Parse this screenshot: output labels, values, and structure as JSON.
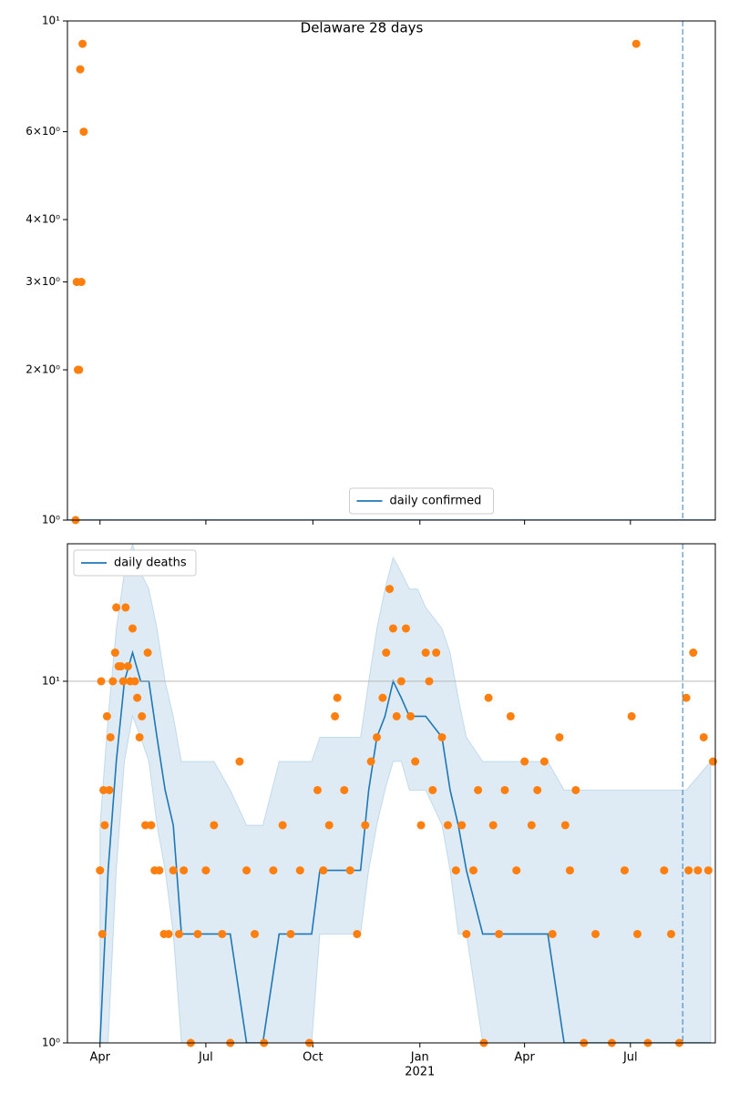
{
  "chart_data": [
    {
      "type": "line",
      "title": "Delaware 28 days",
      "yscale": "log",
      "xlim": [
        "2020-03-04",
        "2021-09-12"
      ],
      "ylim": [
        1,
        10
      ],
      "yticks": [
        {
          "value": 1,
          "label": "10⁰"
        },
        {
          "value": 2,
          "label": "2×10⁰"
        },
        {
          "value": 3,
          "label": "3×10⁰"
        },
        {
          "value": 4,
          "label": "4×10⁰"
        },
        {
          "value": 6,
          "label": "6×10⁰"
        },
        {
          "value": 10,
          "label": "10¹"
        }
      ],
      "grid": false,
      "legend": "lower center",
      "vlines": [
        "2021-08-15"
      ],
      "series": [
        {
          "name": "daily confirmed",
          "type": "line",
          "color": "#1f77b4",
          "x": [
            "2020-03-04",
            "2021-09-12"
          ],
          "values": [
            1,
            1
          ]
        },
        {
          "type": "scatter",
          "color": "#ff7f0e",
          "x": [
            "2020-03-11",
            "2020-03-12",
            "2020-03-13",
            "2020-03-14",
            "2020-03-15",
            "2020-03-16",
            "2020-03-17",
            "2020-03-18",
            "2021-07-06"
          ],
          "values": [
            1,
            3,
            2,
            2,
            8,
            3,
            9,
            6,
            9
          ]
        }
      ]
    },
    {
      "type": "line",
      "yscale": "log",
      "xlim": [
        "2020-03-04",
        "2021-09-12"
      ],
      "ylim": [
        1,
        24
      ],
      "xticks": [
        {
          "value": "2020-04-01",
          "label": "Apr"
        },
        {
          "value": "2020-07-01",
          "label": "Jul"
        },
        {
          "value": "2020-10-01",
          "label": "Oct"
        },
        {
          "value": "2021-01-01",
          "label": "Jan",
          "label2": "2021"
        },
        {
          "value": "2021-04-01",
          "label": "Apr"
        },
        {
          "value": "2021-07-01",
          "label": "Jul"
        }
      ],
      "yticks": [
        {
          "value": 1,
          "label": "10⁰"
        },
        {
          "value": 10,
          "label": "10¹"
        }
      ],
      "grid": true,
      "legend": "upper left",
      "vlines": [
        "2021-08-15"
      ],
      "bands": [
        {
          "color": "#1f77b4",
          "x": [
            "2020-03-25",
            "2020-04-01",
            "2020-04-08",
            "2020-04-15",
            "2020-04-22",
            "2020-04-29",
            "2020-05-06",
            "2020-05-13",
            "2020-05-20",
            "2020-05-27",
            "2020-06-03",
            "2020-06-10",
            "2020-06-24",
            "2020-07-08",
            "2020-07-22",
            "2020-08-05",
            "2020-08-19",
            "2020-09-02",
            "2020-09-16",
            "2020-09-30",
            "2020-10-07",
            "2020-10-21",
            "2020-11-04",
            "2020-11-11",
            "2020-11-18",
            "2020-11-25",
            "2020-12-02",
            "2020-12-09",
            "2020-12-16",
            "2020-12-23",
            "2020-12-30",
            "2021-01-06",
            "2021-01-20",
            "2021-01-27",
            "2021-02-03",
            "2021-02-10",
            "2021-02-24",
            "2021-03-10",
            "2021-03-24",
            "2021-04-07",
            "2021-04-21",
            "2021-05-05",
            "2021-05-19",
            "2021-07-07",
            "2021-08-18",
            "2021-09-08"
          ],
          "lower": [
            null,
            1,
            1,
            3,
            6,
            8,
            7,
            6,
            4,
            3,
            2,
            1,
            1,
            1,
            1,
            1,
            1,
            1,
            1,
            1,
            2,
            2,
            2,
            2,
            3,
            4,
            5,
            6,
            6,
            5,
            5,
            5,
            4,
            3,
            2,
            2,
            1,
            1,
            1,
            1,
            1,
            1,
            1,
            1,
            1,
            1
          ],
          "upper": [
            null,
            4,
            8,
            14,
            20,
            24,
            20,
            18,
            14,
            10,
            8,
            6,
            6,
            6,
            5,
            4,
            4,
            6,
            6,
            6,
            7,
            7,
            7,
            7,
            10,
            14,
            18,
            22,
            20,
            18,
            18,
            16,
            14,
            12,
            9,
            7,
            6,
            6,
            6,
            6,
            6,
            5,
            5,
            5,
            5,
            6
          ]
        }
      ],
      "series": [
        {
          "name": "daily deaths",
          "type": "line",
          "color": "#1f77b4",
          "x": [
            "2020-03-25",
            "2020-04-01",
            "2020-04-08",
            "2020-04-15",
            "2020-04-22",
            "2020-04-29",
            "2020-05-06",
            "2020-05-13",
            "2020-05-20",
            "2020-05-27",
            "2020-06-03",
            "2020-06-10",
            "2020-06-24",
            "2020-07-08",
            "2020-07-22",
            "2020-08-05",
            "2020-08-19",
            "2020-09-02",
            "2020-09-16",
            "2020-09-30",
            "2020-10-07",
            "2020-10-21",
            "2020-11-04",
            "2020-11-11",
            "2020-11-18",
            "2020-11-25",
            "2020-12-02",
            "2020-12-09",
            "2020-12-16",
            "2020-12-23",
            "2020-12-30",
            "2021-01-06",
            "2021-01-20",
            "2021-01-27",
            "2021-02-03",
            "2021-02-10",
            "2021-02-24",
            "2021-03-10",
            "2021-03-24",
            "2021-04-07",
            "2021-04-21",
            "2021-05-05",
            "2021-05-19",
            "2021-07-07",
            "2021-08-18",
            "2021-09-08"
          ],
          "values": [
            null,
            1,
            3,
            6,
            10,
            12,
            10,
            10,
            7,
            5,
            4,
            2,
            2,
            2,
            2,
            1,
            1,
            2,
            2,
            2,
            3,
            3,
            3,
            3,
            5,
            7,
            8,
            10,
            9,
            8,
            8,
            8,
            7,
            5,
            4,
            3,
            2,
            2,
            2,
            2,
            2,
            1,
            1,
            1,
            1,
            1
          ]
        },
        {
          "type": "scatter",
          "color": "#ff7f0e",
          "x": [
            "2020-04-01",
            "2020-04-02",
            "2020-04-03",
            "2020-04-04",
            "2020-04-05",
            "2020-04-07",
            "2020-04-09",
            "2020-04-10",
            "2020-04-12",
            "2020-04-14",
            "2020-04-15",
            "2020-04-17",
            "2020-04-19",
            "2020-04-21",
            "2020-04-23",
            "2020-04-25",
            "2020-04-27",
            "2020-04-29",
            "2020-05-01",
            "2020-05-03",
            "2020-05-05",
            "2020-05-07",
            "2020-05-10",
            "2020-05-12",
            "2020-05-15",
            "2020-05-18",
            "2020-05-22",
            "2020-05-26",
            "2020-05-30",
            "2020-06-03",
            "2020-06-08",
            "2020-06-12",
            "2020-06-18",
            "2020-06-24",
            "2020-07-01",
            "2020-07-08",
            "2020-07-15",
            "2020-07-22",
            "2020-07-30",
            "2020-08-05",
            "2020-08-12",
            "2020-08-20",
            "2020-08-28",
            "2020-09-05",
            "2020-09-12",
            "2020-09-20",
            "2020-09-28",
            "2020-10-05",
            "2020-10-10",
            "2020-10-15",
            "2020-10-20",
            "2020-10-22",
            "2020-10-28",
            "2020-11-02",
            "2020-11-08",
            "2020-11-15",
            "2020-11-20",
            "2020-11-25",
            "2020-11-30",
            "2020-12-03",
            "2020-12-06",
            "2020-12-09",
            "2020-12-12",
            "2020-12-16",
            "2020-12-20",
            "2020-12-24",
            "2020-12-28",
            "2021-01-02",
            "2021-01-06",
            "2021-01-09",
            "2021-01-12",
            "2021-01-15",
            "2021-01-20",
            "2021-01-25",
            "2021-02-01",
            "2021-02-06",
            "2021-02-10",
            "2021-02-16",
            "2021-02-20",
            "2021-02-25",
            "2021-03-01",
            "2021-03-05",
            "2021-03-10",
            "2021-03-15",
            "2021-03-20",
            "2021-03-25",
            "2021-04-01",
            "2021-04-07",
            "2021-04-12",
            "2021-04-18",
            "2021-04-25",
            "2021-05-01",
            "2021-05-06",
            "2021-05-10",
            "2021-05-15",
            "2021-05-22",
            "2021-06-01",
            "2021-06-15",
            "2021-06-26",
            "2021-07-02",
            "2021-07-07",
            "2021-07-16",
            "2021-07-30",
            "2021-08-05",
            "2021-08-12",
            "2021-08-18",
            "2021-08-20",
            "2021-08-24",
            "2021-08-28",
            "2021-09-02",
            "2021-09-06",
            "2021-09-10"
          ],
          "values": [
            3,
            10,
            2,
            5,
            4,
            8,
            5,
            7,
            10,
            12,
            16,
            11,
            11,
            10,
            16,
            11,
            10,
            14,
            10,
            9,
            7,
            8,
            4,
            12,
            4,
            3,
            3,
            2,
            2,
            3,
            2,
            3,
            1,
            2,
            3,
            4,
            2,
            1,
            6,
            3,
            2,
            1,
            3,
            4,
            2,
            3,
            1,
            5,
            3,
            4,
            8,
            9,
            5,
            3,
            2,
            4,
            6,
            7,
            9,
            12,
            18,
            14,
            8,
            10,
            14,
            8,
            6,
            4,
            12,
            10,
            5,
            12,
            7,
            4,
            3,
            4,
            2,
            3,
            5,
            1,
            9,
            4,
            2,
            5,
            8,
            3,
            6,
            4,
            5,
            6,
            2,
            7,
            4,
            3,
            5,
            1,
            2,
            1,
            3,
            8,
            2,
            1,
            3,
            2,
            1,
            9,
            3,
            12,
            3,
            7,
            3,
            6
          ]
        }
      ]
    }
  ]
}
